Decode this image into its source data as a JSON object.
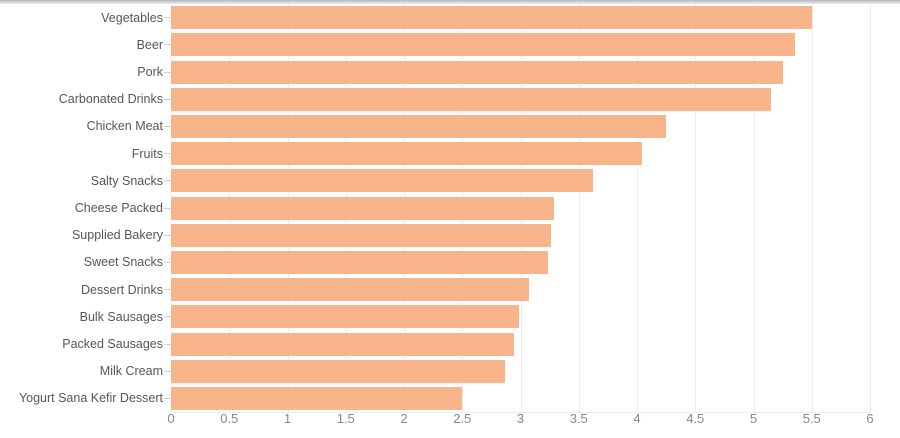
{
  "chart_data": {
    "type": "bar",
    "orientation": "horizontal",
    "title": "",
    "xlabel": "",
    "ylabel": "",
    "categories": [
      "Vegetables",
      "Beer",
      "Pork",
      "Carbonated Drinks",
      "Chicken Meat",
      "Fruits",
      "Salty Snacks",
      "Cheese Packed",
      "Supplied Bakery",
      "Sweet Snacks",
      "Dessert Drinks",
      "Bulk Sausages",
      "Packed Sausages",
      "Milk Cream",
      "Yogurt Sana Kefir Dessert"
    ],
    "values": [
      5.5,
      5.36,
      5.25,
      5.15,
      4.25,
      4.04,
      3.62,
      3.29,
      3.26,
      3.24,
      3.07,
      2.99,
      2.94,
      2.87,
      2.5
    ],
    "xlim": [
      0,
      6
    ],
    "x_tick_values": [
      0,
      0.5,
      1,
      1.5,
      2,
      2.5,
      3,
      3.5,
      4,
      4.5,
      5,
      5.5,
      6
    ],
    "x_tick_labels": [
      "0",
      "0.5",
      "1",
      "1.5",
      "2",
      "2.5",
      "3",
      "3.5",
      "4",
      "4.5",
      "5",
      "5.5",
      "6"
    ],
    "grid": true,
    "legend": "none",
    "bar_color": "#f8b58c"
  },
  "style": {
    "grid_color": "#ebebf0",
    "category_label_color": "#54575c",
    "tick_label_color": "#85888d",
    "axis_tick_color": "#d2d2d7"
  }
}
